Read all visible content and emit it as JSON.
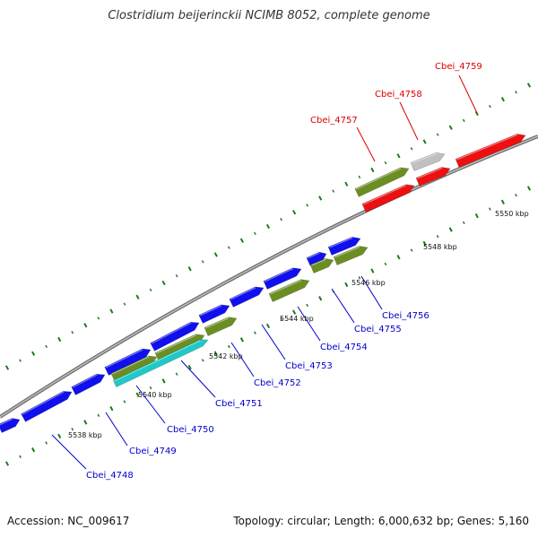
{
  "title": "Clostridium beijerinckii NCIMB 8052, complete genome",
  "footer": {
    "accession": "Accession: NC_009617",
    "topology": "Topology: circular; Length: 6,000,632 bp; Genes: 5,160"
  },
  "colors": {
    "blue_gene": "#1010ee",
    "green_gene": "#6b8e23",
    "red_gene": "#ee1010",
    "grey_gene": "#c0c0c0",
    "cyan_gene": "#20c8c8",
    "backbone": "#888888",
    "tick": "#1a7a1a",
    "label_blue": "#0000cc",
    "label_red": "#dd0000"
  },
  "scale_labels": [
    {
      "id": "k5538",
      "text": "5538 kbp"
    },
    {
      "id": "k5540",
      "text": "5540 kbp"
    },
    {
      "id": "k5542",
      "text": "5542 kbp"
    },
    {
      "id": "k5544",
      "text": "5544 kbp"
    },
    {
      "id": "k5546",
      "text": "5546 kbp"
    },
    {
      "id": "k5548",
      "text": "5548 kbp"
    },
    {
      "id": "k5550",
      "text": "5550 kbp"
    }
  ],
  "gene_labels": [
    {
      "id": "cbei4748",
      "text": "Cbei_4748",
      "color": "#0000cc"
    },
    {
      "id": "cbei4749",
      "text": "Cbei_4749",
      "color": "#0000cc"
    },
    {
      "id": "cbei4750",
      "text": "Cbei_4750",
      "color": "#0000cc"
    },
    {
      "id": "cbei4751",
      "text": "Cbei_4751",
      "color": "#0000cc"
    },
    {
      "id": "cbei4752",
      "text": "Cbei_4752",
      "color": "#0000cc"
    },
    {
      "id": "cbei4753",
      "text": "Cbei_4753",
      "color": "#0000cc"
    },
    {
      "id": "cbei4754",
      "text": "Cbei_4754",
      "color": "#0000cc"
    },
    {
      "id": "cbei4755",
      "text": "Cbei_4755",
      "color": "#0000cc"
    },
    {
      "id": "cbei4756",
      "text": "Cbei_4756",
      "color": "#0000cc"
    },
    {
      "id": "cbei4757",
      "text": "Cbei_4757",
      "color": "#dd0000"
    },
    {
      "id": "cbei4758",
      "text": "Cbei_4758",
      "color": "#dd0000"
    },
    {
      "id": "cbei4759",
      "text": "Cbei_4759",
      "color": "#dd0000"
    }
  ]
}
